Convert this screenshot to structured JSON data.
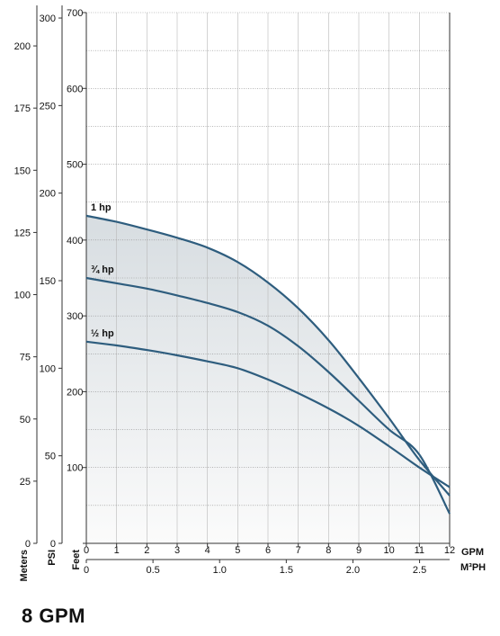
{
  "title": "8 GPM",
  "chart_data": {
    "type": "line",
    "x": [
      0,
      1,
      2,
      3,
      4,
      5,
      6,
      7,
      8,
      9,
      10,
      11,
      12
    ],
    "xlabel": "GPM",
    "xlim": [
      0,
      12
    ],
    "x2": {
      "label": "M³PH",
      "ticks": [
        0,
        0.5,
        1.0,
        1.5,
        2.0,
        2.5
      ],
      "tick_labels": [
        "0",
        "0.5",
        "1.0",
        "1.5",
        "2.0",
        "2.5"
      ],
      "range": [
        0,
        2.7255
      ]
    },
    "y_axes": [
      {
        "label": "Feet",
        "ticks": [
          0,
          100,
          200,
          300,
          400,
          500,
          600,
          700
        ],
        "range": [
          0,
          700
        ]
      },
      {
        "label": "PSI",
        "ticks": [
          0,
          50,
          100,
          150,
          200,
          250,
          300
        ],
        "range": [
          0,
          303.1
        ]
      },
      {
        "label": "Meters",
        "ticks": [
          0,
          25,
          50,
          75,
          100,
          125,
          150,
          175,
          200
        ],
        "range": [
          0,
          213.4
        ]
      }
    ],
    "series": [
      {
        "name": "1 hp",
        "values": [
          432,
          424,
          414,
          403,
          390,
          371,
          344,
          310,
          268,
          218,
          165,
          110,
          63
        ]
      },
      {
        "name": "¾ hp",
        "values": [
          350,
          343,
          336,
          327,
          317,
          305,
          287,
          260,
          226,
          188,
          150,
          117,
          39
        ]
      },
      {
        "name": "½ hp",
        "values": [
          266,
          261,
          255,
          248,
          240,
          231,
          216,
          198,
          178,
          155,
          128,
          100,
          74
        ]
      }
    ],
    "grid": true,
    "color": "#2e5d7e"
  }
}
